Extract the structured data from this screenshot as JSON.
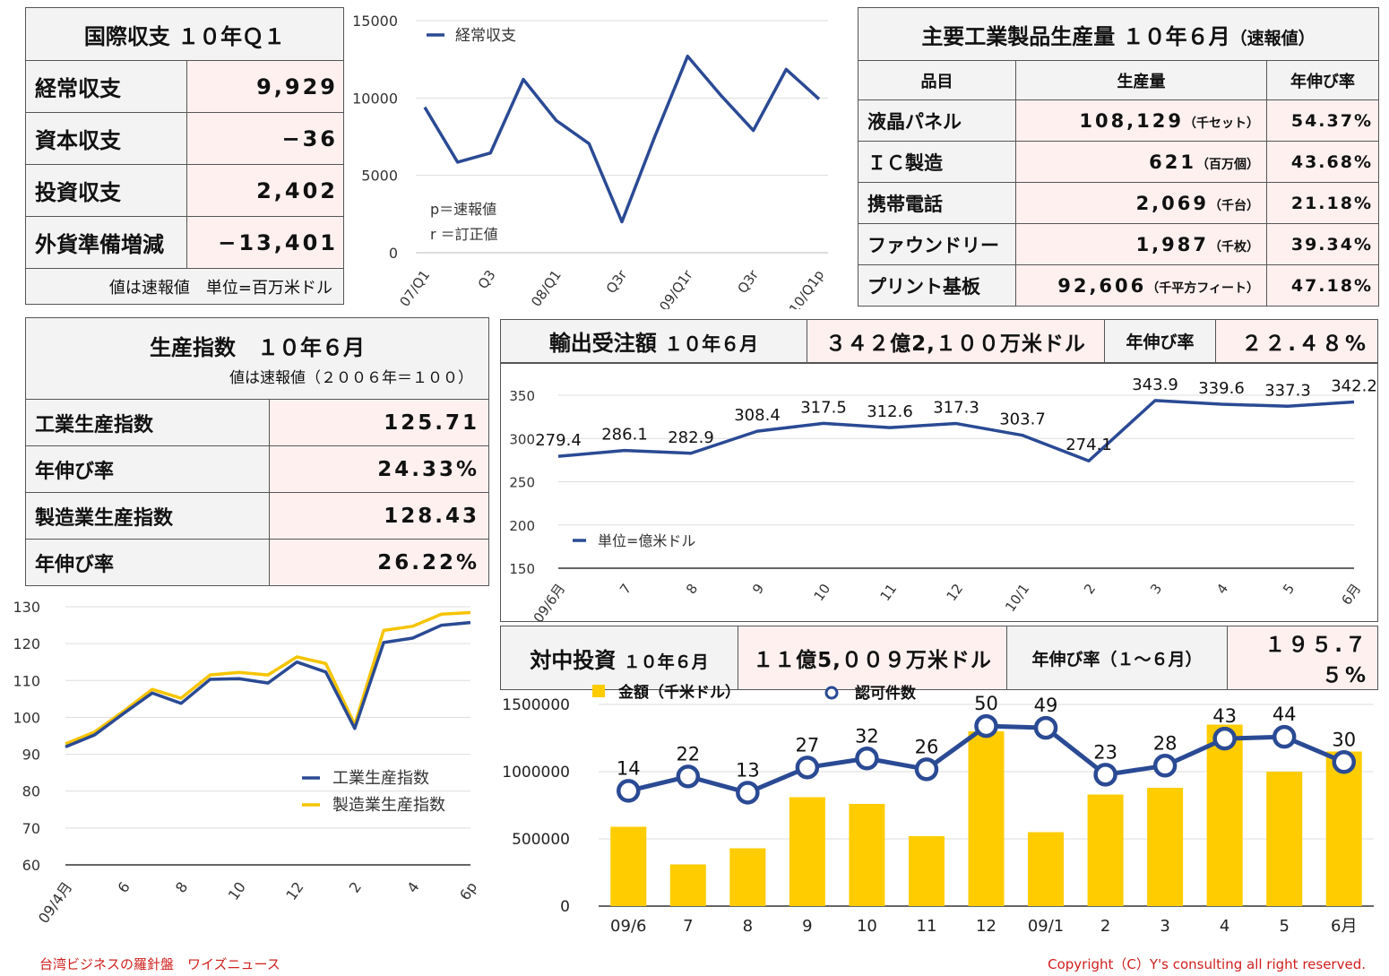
{
  "bop": {
    "title": "国際収支 １０年Ｑ１",
    "rows": [
      {
        "label": "経常収支",
        "value": "9,929"
      },
      {
        "label": "資本収支",
        "value": "−36"
      },
      {
        "label": "投資収支",
        "value": "2,402"
      },
      {
        "label": "外貨準備増減",
        "value": "−13,401"
      }
    ],
    "note": "値は速報値　単位=百万米ドル"
  },
  "industrial": {
    "title": "主要工業製品生産量 １０年６月",
    "title_small": "（速報値）",
    "headers": [
      "品目",
      "生産量",
      "年伸び率"
    ],
    "rows": [
      {
        "item": "液晶パネル",
        "qty": "108,129",
        "unit": "（千セット）",
        "growth": "54.37%"
      },
      {
        "item": "ＩＣ製造",
        "qty": "621",
        "unit": "（百万個）",
        "growth": "43.68%"
      },
      {
        "item": "携帯電話",
        "qty": "2,069",
        "unit": "（千台）",
        "growth": "21.18%"
      },
      {
        "item": "ファウンドリー",
        "qty": "1,987",
        "unit": "（千枚）",
        "growth": "39.34%"
      },
      {
        "item": "プリント基板",
        "qty": "92,606",
        "unit": "（千平方フィート）",
        "growth": "47.18%"
      }
    ]
  },
  "prod_index": {
    "title": "生産指数　１０年６月",
    "subtitle": "値は速報値（２００６年＝１００）",
    "rows": [
      {
        "label": "工業生産指数",
        "value": "125.71"
      },
      {
        "label": "年伸び率",
        "value": "24.33%"
      },
      {
        "label": "製造業生産指数",
        "value": "128.43"
      },
      {
        "label": "年伸び率",
        "value": "26.22%"
      }
    ]
  },
  "export_orders": {
    "title": "輸出受注額",
    "title_small": "１０年６月",
    "amount": "３４２億2,１００万米ドル",
    "growth_label": "年伸び率",
    "growth": "２２.４８%"
  },
  "china_inv": {
    "title": "対中投資",
    "title_small": "１０年６月",
    "amount": "１１億5,００９万米ドル",
    "growth_label": "年伸び率（１～６月）",
    "growth": "１９５.７５%"
  },
  "footer": {
    "left": "台湾ビジネスの羅針盤　ワイズニュース",
    "right": "Copyright（C）Y's consulting all right reserved."
  },
  "chart_data": [
    {
      "id": "bop",
      "type": "line",
      "categories": [
        "07/Q1",
        "",
        "Q3",
        "",
        "08/Q1",
        "",
        "Q3r",
        "",
        "09/Q1r",
        "",
        "Q3r",
        "",
        "10/Q1p"
      ],
      "series": [
        {
          "name": "経常収支",
          "values": [
            9400,
            5850,
            6450,
            11200,
            8550,
            7050,
            2000,
            7500,
            12700,
            10200,
            7900,
            11850,
            9929
          ],
          "color": "#2a4a94"
        }
      ],
      "ylim": [
        0,
        15000
      ],
      "yticks": [
        0,
        5000,
        10000,
        15000
      ],
      "annotations": [
        "p＝速報値",
        "r ＝訂正値"
      ],
      "legend": "top-left",
      "grid": true
    },
    {
      "id": "export",
      "type": "line",
      "categories": [
        "09/6月",
        "7",
        "8",
        "9",
        "10",
        "11",
        "12",
        "10/1",
        "2",
        "3",
        "4",
        "5",
        "6月"
      ],
      "series": [
        {
          "name": "単位=億米ドル",
          "values": [
            279.4,
            286.1,
            282.9,
            308.4,
            317.5,
            312.6,
            317.3,
            303.7,
            274.1,
            343.9,
            339.6,
            337.3,
            342.2
          ],
          "color": "#2a4a94"
        }
      ],
      "data_labels": [
        "279.4",
        "286.1",
        "282.9",
        "308.4",
        "317.5",
        "312.6",
        "317.3",
        "303.7",
        "274.1",
        "343.9",
        "339.6",
        "337.3",
        "342.2"
      ],
      "ylim": [
        150,
        350
      ],
      "yticks": [
        150,
        200,
        250,
        300,
        350
      ],
      "legend": "bottom-left",
      "grid": true
    },
    {
      "id": "prod",
      "type": "line",
      "categories": [
        "09/4月",
        "",
        "6",
        "",
        "8",
        "",
        "10",
        "",
        "12",
        "",
        "2",
        "",
        "4",
        "",
        "6p"
      ],
      "series": [
        {
          "name": "工業生産指数",
          "values": [
            92.0,
            95.2,
            101.0,
            106.6,
            103.8,
            110.3,
            110.5,
            109.3,
            115.0,
            112.3,
            97.0,
            120.3,
            121.5,
            125.0,
            125.71
          ],
          "color": "#2a4a94"
        },
        {
          "name": "製造業生産指数",
          "values": [
            92.8,
            96.0,
            101.6,
            107.6,
            105.2,
            111.5,
            112.2,
            111.5,
            116.4,
            114.6,
            98.0,
            123.6,
            124.7,
            128.0,
            128.43
          ],
          "color": "#f5c400"
        }
      ],
      "ylim": [
        60,
        130
      ],
      "yticks": [
        60,
        70,
        80,
        90,
        100,
        110,
        120,
        130
      ],
      "legend": "bottom-right",
      "grid": true
    },
    {
      "id": "china",
      "type": "bar",
      "categories": [
        "09/6",
        "7",
        "8",
        "9",
        "10",
        "11",
        "12",
        "09/1",
        "2",
        "3",
        "4",
        "5",
        "6月"
      ],
      "series": [
        {
          "name": "金額（千米ドル）",
          "type": "bar",
          "values": [
            590000,
            310000,
            430000,
            810000,
            760000,
            520000,
            1300000,
            550000,
            830000,
            880000,
            1350000,
            1000000,
            1150000
          ],
          "color": "#ffcc00"
        },
        {
          "name": "認可件数",
          "type": "line",
          "values": [
            14,
            22,
            13,
            27,
            32,
            26,
            50,
            49,
            23,
            28,
            43,
            44,
            30
          ],
          "color": "#2a4a94"
        }
      ],
      "data_labels": [
        "14",
        "22",
        "13",
        "27",
        "32",
        "26",
        "50",
        "49",
        "23",
        "28",
        "43",
        "44",
        "30"
      ],
      "ylim": [
        0,
        1500000
      ],
      "yticks": [
        0,
        500000,
        1000000,
        1500000
      ],
      "y2lim": [
        -50,
        62
      ],
      "legend": "top",
      "grid": true
    }
  ]
}
